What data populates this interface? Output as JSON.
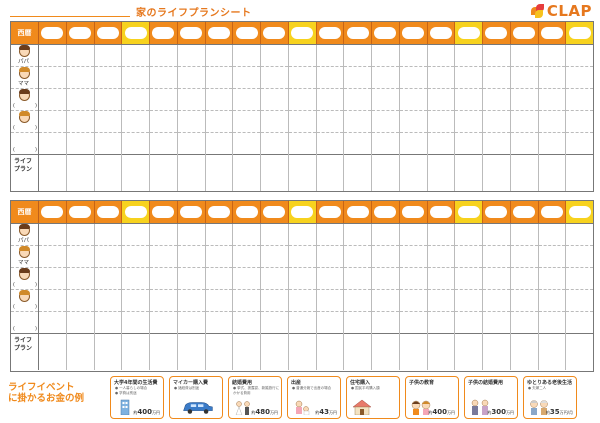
{
  "header": {
    "title": "家のライフプランシート",
    "logo_text": "CLAP",
    "logo_colors": [
      "#f08a1c",
      "#e63d3d",
      "#f7c21e"
    ]
  },
  "table": {
    "year_label": "西暦",
    "life_plan_label_1": "ライフ",
    "life_plan_label_2": "プラン",
    "person_1": "パパ",
    "person_2": "ママ",
    "paren_open": "(",
    "paren_close": ")",
    "highlight_columns": [
      4,
      10,
      16,
      20
    ]
  },
  "events": {
    "title_line_1": "ライフイベント",
    "title_line_2": "に掛かるお金の例",
    "items": [
      {
        "title": "大学4年間の生活費",
        "note1": "● 一人暮らしの場合",
        "note2": "● 学費は別途",
        "prefix": "約",
        "amount": "400",
        "unit": "万円",
        "icon": "building-icon"
      },
      {
        "title": "マイカー購入費",
        "note1": "● 諸経費は別途",
        "note2": "",
        "prefix": "約",
        "amount": "",
        "unit": "",
        "icon": "car-icon"
      },
      {
        "title": "結婚費用",
        "note1": "● 挙式、披露宴、新婚旅行に",
        "note2": "かかる費用",
        "prefix": "約",
        "amount": "480",
        "unit": "万円",
        "icon": "wedding-icon"
      },
      {
        "title": "出産",
        "note1": "● 普通分娩で出産の場合",
        "note2": "",
        "prefix": "約",
        "amount": "43",
        "unit": "万円",
        "icon": "baby-icon"
      },
      {
        "title": "住宅購入",
        "note1": "● 国民平均購入額",
        "note2": "",
        "prefix": "",
        "amount": "",
        "unit": "",
        "icon": "house-icon"
      },
      {
        "title": "子供の教育",
        "note1": "",
        "note2": "",
        "prefix": "約",
        "amount": "400",
        "unit": "万円",
        "icon": "children-icon"
      },
      {
        "title": "子供の結婚費用",
        "note1": "",
        "note2": "",
        "prefix": "約",
        "amount": "300",
        "unit": "万円",
        "icon": "couple-icon"
      },
      {
        "title": "ゆとりある老後生活",
        "note1": "● 夫婦二人",
        "note2": "",
        "prefix": "約",
        "amount": "35",
        "unit": "万円/月",
        "icon": "elderly-icon"
      }
    ]
  }
}
